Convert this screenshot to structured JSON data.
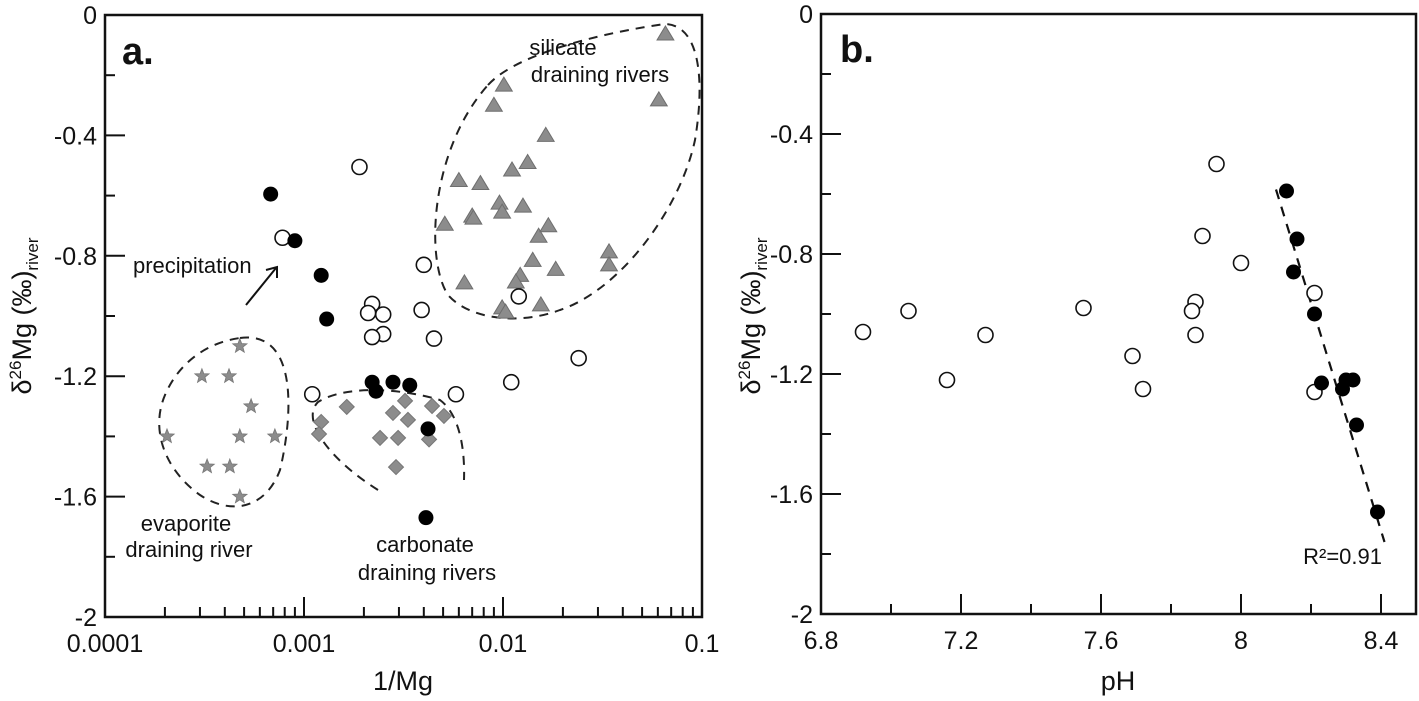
{
  "chart_data": [
    {
      "type": "scatter",
      "panel_label": "a.",
      "xlabel": "1/Mg",
      "ylabel": {
        "delta": "δ",
        "superscript": "26",
        "main": "Mg (‰)",
        "subscript": "river"
      },
      "xscale": "log",
      "xlim": [
        0.0001,
        0.1
      ],
      "ylim": [
        -2,
        0
      ],
      "x_ticks": [
        "0.0001",
        "0.001",
        "0.01",
        "0.1"
      ],
      "y_ticks": [
        "0",
        "-0.4",
        "-0.8",
        "-1.2",
        "-1.6",
        "-2"
      ],
      "grid": false,
      "annotations": [
        {
          "text": "silicate",
          "group": "silicate"
        },
        {
          "text": "draining rivers",
          "group": "silicate"
        },
        {
          "text": "precipitation",
          "group": "arrow"
        },
        {
          "text": "evaporite",
          "group": "evaporite"
        },
        {
          "text": "draining river",
          "group": "evaporite"
        },
        {
          "text": "carbonate",
          "group": "carbonate"
        },
        {
          "text": "draining rivers",
          "group": "carbonate"
        }
      ],
      "series": [
        {
          "name": "filled circles",
          "marker": "circle-filled",
          "color": "#000000",
          "points": [
            [
              0.00068,
              -0.595
            ],
            [
              0.0009,
              -0.75
            ],
            [
              0.00122,
              -0.865
            ],
            [
              0.0013,
              -1.01
            ],
            [
              0.0022,
              -1.22
            ],
            [
              0.0023,
              -1.25
            ],
            [
              0.0028,
              -1.22
            ],
            [
              0.0034,
              -1.23
            ],
            [
              0.0042,
              -1.375
            ],
            [
              0.0041,
              -1.67
            ]
          ]
        },
        {
          "name": "open circles",
          "marker": "circle-open",
          "color": "#000000",
          "points": [
            [
              0.00078,
              -0.74
            ],
            [
              0.0019,
              -0.505
            ],
            [
              0.0022,
              -0.96
            ],
            [
              0.0021,
              -0.99
            ],
            [
              0.0025,
              -0.995
            ],
            [
              0.0025,
              -1.06
            ],
            [
              0.0022,
              -1.07
            ],
            [
              0.004,
              -0.83
            ],
            [
              0.0039,
              -0.98
            ],
            [
              0.0045,
              -1.075
            ],
            [
              0.0011,
              -1.26
            ],
            [
              0.0058,
              -1.26
            ],
            [
              0.012,
              -0.935
            ],
            [
              0.011,
              -1.22
            ],
            [
              0.024,
              -1.14
            ]
          ]
        },
        {
          "name": "silicate draining rivers",
          "marker": "triangle",
          "color": "#8c8c8c",
          "points": [
            [
              0.0101,
              -0.233
            ],
            [
              0.009,
              -0.3
            ],
            [
              0.0164,
              -0.4
            ],
            [
              0.0111,
              -0.515
            ],
            [
              0.0133,
              -0.49
            ],
            [
              0.006,
              -0.55
            ],
            [
              0.0077,
              -0.56
            ],
            [
              0.0096,
              -0.625
            ],
            [
              0.0099,
              -0.655
            ],
            [
              0.0126,
              -0.635
            ],
            [
              0.0051,
              -0.695
            ],
            [
              0.007,
              -0.668
            ],
            [
              0.0071,
              -0.675
            ],
            [
              0.0151,
              -0.735
            ],
            [
              0.0169,
              -0.7
            ],
            [
              0.0141,
              -0.815
            ],
            [
              0.0122,
              -0.865
            ],
            [
              0.0184,
              -0.845
            ],
            [
              0.0064,
              -0.89
            ],
            [
              0.0116,
              -0.887
            ],
            [
              0.0099,
              -0.973
            ],
            [
              0.0103,
              -0.987
            ],
            [
              0.0155,
              -0.963
            ],
            [
              0.0341,
              -0.787
            ],
            [
              0.0341,
              -0.83
            ],
            [
              0.0655,
              -0.063
            ],
            [
              0.0607,
              -0.282
            ]
          ]
        },
        {
          "name": "evaporite draining river",
          "marker": "star",
          "color": "#8c8c8c",
          "points": [
            [
              0.000476,
              -1.1
            ],
            [
              0.000307,
              -1.2
            ],
            [
              0.00042,
              -1.2
            ],
            [
              0.000542,
              -1.3
            ],
            [
              0.000205,
              -1.4
            ],
            [
              0.000476,
              -1.4
            ],
            [
              0.000714,
              -1.4
            ],
            [
              0.000326,
              -1.5
            ],
            [
              0.000424,
              -1.5
            ],
            [
              0.000476,
              -1.6
            ]
          ]
        },
        {
          "name": "carbonate draining rivers",
          "marker": "diamond",
          "color": "#8c8c8c",
          "points": [
            [
              0.00164,
              -1.302
            ],
            [
              0.00122,
              -1.352
            ],
            [
              0.00119,
              -1.392
            ],
            [
              0.00322,
              -1.282
            ],
            [
              0.0028,
              -1.322
            ],
            [
              0.00333,
              -1.345
            ],
            [
              0.00241,
              -1.405
            ],
            [
              0.00297,
              -1.405
            ],
            [
              0.0044,
              -1.299
            ],
            [
              0.00505,
              -1.332
            ],
            [
              0.00425,
              -1.41
            ],
            [
              0.0029,
              -1.502
            ]
          ]
        }
      ]
    },
    {
      "type": "scatter",
      "panel_label": "b.",
      "xlabel": "pH",
      "ylabel": {
        "delta": "δ",
        "superscript": "26",
        "main": "Mg (‰)",
        "subscript": "river"
      },
      "xscale": "linear",
      "xlim": [
        6.8,
        8.5
      ],
      "ylim": [
        -2,
        0
      ],
      "x_ticks": [
        "6.8",
        "7.2",
        "7.6",
        "8",
        "8.4"
      ],
      "y_ticks": [
        "0",
        "-0.4",
        "-0.8",
        "-1.2",
        "-1.6",
        "-2"
      ],
      "grid": false,
      "annotations": [
        {
          "text": "R²=0.91"
        }
      ],
      "trendline": {
        "x": [
          8.1,
          8.41
        ],
        "y": [
          -0.585,
          -1.76
        ],
        "style": "dashed",
        "r_squared": 0.91
      },
      "series": [
        {
          "name": "open circles",
          "marker": "circle-open",
          "color": "#000000",
          "points": [
            [
              6.92,
              -1.06
            ],
            [
              7.05,
              -0.99
            ],
            [
              7.16,
              -1.22
            ],
            [
              7.27,
              -1.07
            ],
            [
              7.55,
              -0.98
            ],
            [
              7.69,
              -1.14
            ],
            [
              7.72,
              -1.25
            ],
            [
              7.93,
              -0.5
            ],
            [
              7.89,
              -0.74
            ],
            [
              7.87,
              -0.96
            ],
            [
              7.86,
              -0.99
            ],
            [
              7.87,
              -1.07
            ],
            [
              8.0,
              -0.83
            ],
            [
              8.21,
              -0.93
            ],
            [
              8.21,
              -1.26
            ]
          ]
        },
        {
          "name": "filled circles",
          "marker": "circle-filled",
          "color": "#000000",
          "points": [
            [
              8.13,
              -0.59
            ],
            [
              8.16,
              -0.75
            ],
            [
              8.15,
              -0.86
            ],
            [
              8.21,
              -1.0
            ],
            [
              8.23,
              -1.23
            ],
            [
              8.29,
              -1.25
            ],
            [
              8.3,
              -1.22
            ],
            [
              8.32,
              -1.22
            ],
            [
              8.33,
              -1.37
            ],
            [
              8.39,
              -1.66
            ]
          ]
        }
      ]
    }
  ]
}
